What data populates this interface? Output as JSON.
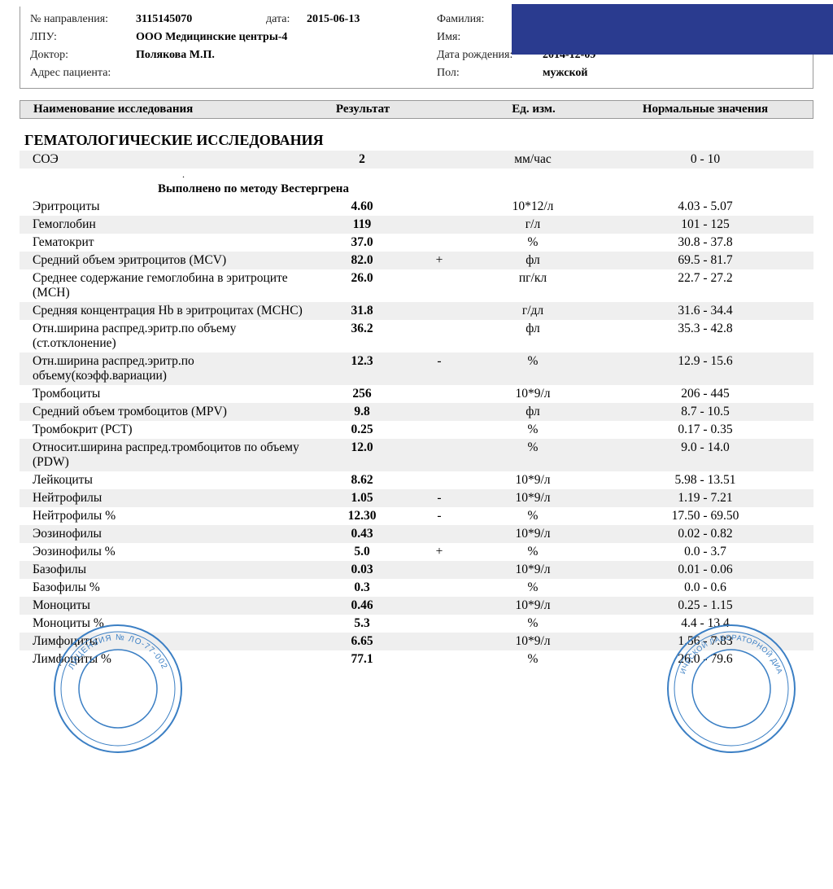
{
  "header": {
    "referral_label": "№ направления:",
    "referral_value": "3115145070",
    "date_label": "дата:",
    "date_value": "2015-06-13",
    "lpu_label": "ЛПУ:",
    "lpu_value": "ООО Медицинские центры-4",
    "doctor_label": "Доктор:",
    "doctor_value": "Полякова М.П.",
    "address_label": "Адрес пациента:",
    "address_value": "",
    "surname_label": "Фамилия:",
    "name_label": "Имя:",
    "dob_label": "Дата рождения:",
    "dob_value": "2014-12-09",
    "sex_label": "Пол:",
    "sex_value": "мужской"
  },
  "columns": {
    "name": "Наименование исследования",
    "result": "Результат",
    "unit": "Ед. изм.",
    "norm": "Нормальные значения"
  },
  "section_title": "ГЕМАТОЛОГИЧЕСКИЕ ИССЛЕДОВАНИЯ",
  "method_note": "Выполнено по методу Вестергрена",
  "rows": [
    {
      "name": "СОЭ",
      "result": "2",
      "flag": "",
      "unit": "мм/час",
      "norm": "0 - 10",
      "alt": true
    },
    {
      "name": "Эритроциты",
      "result": "4.60",
      "flag": "",
      "unit": "10*12/л",
      "norm": "4.03 - 5.07",
      "alt": false
    },
    {
      "name": "Гемоглобин",
      "result": "119",
      "flag": "",
      "unit": "г/л",
      "norm": "101 - 125",
      "alt": true
    },
    {
      "name": "Гематокрит",
      "result": "37.0",
      "flag": "",
      "unit": "%",
      "norm": "30.8 - 37.8",
      "alt": false
    },
    {
      "name": "Средний объем эритроцитов (MCV)",
      "result": "82.0",
      "flag": "+",
      "unit": "фл",
      "norm": "69.5 - 81.7",
      "alt": true
    },
    {
      "name": "Среднее содержание гемоглобина в эритроците (MCH)",
      "result": "26.0",
      "flag": "",
      "unit": "пг/кл",
      "norm": "22.7 - 27.2",
      "alt": false
    },
    {
      "name": "Средняя концентрация Hb в эритроцитах (MCHC)",
      "result": "31.8",
      "flag": "",
      "unit": "г/дл",
      "norm": "31.6 - 34.4",
      "alt": true
    },
    {
      "name": "Отн.ширина распред.эритр.по объему (ст.отклонение)",
      "result": "36.2",
      "flag": "",
      "unit": "фл",
      "norm": "35.3 - 42.8",
      "alt": false
    },
    {
      "name": "Отн.ширина распред.эритр.по объему(коэфф.вариации)",
      "result": "12.3",
      "flag": "-",
      "unit": "%",
      "norm": "12.9 - 15.6",
      "alt": true
    },
    {
      "name": "Тромбоциты",
      "result": "256",
      "flag": "",
      "unit": "10*9/л",
      "norm": "206 - 445",
      "alt": false
    },
    {
      "name": "Средний объем тромбоцитов (MPV)",
      "result": "9.8",
      "flag": "",
      "unit": "фл",
      "norm": "8.7 - 10.5",
      "alt": true
    },
    {
      "name": "Тромбокрит (PCT)",
      "result": "0.25",
      "flag": "",
      "unit": "%",
      "norm": "0.17 - 0.35",
      "alt": false
    },
    {
      "name": "Относит.ширина распред.тромбоцитов по объему (PDW)",
      "result": "12.0",
      "flag": "",
      "unit": "%",
      "norm": "9.0 - 14.0",
      "alt": true
    },
    {
      "name": "Лейкоциты",
      "result": "8.62",
      "flag": "",
      "unit": "10*9/л",
      "norm": "5.98 - 13.51",
      "alt": false
    },
    {
      "name": "Нейтрофилы",
      "result": "1.05",
      "flag": "-",
      "unit": "10*9/л",
      "norm": "1.19 - 7.21",
      "alt": true
    },
    {
      "name": "Нейтрофилы %",
      "result": "12.30",
      "flag": "-",
      "unit": "%",
      "norm": "17.50 - 69.50",
      "alt": false
    },
    {
      "name": "Эозинофилы",
      "result": "0.43",
      "flag": "",
      "unit": "10*9/л",
      "norm": "0.02 - 0.82",
      "alt": true
    },
    {
      "name": "Эозинофилы %",
      "result": "5.0",
      "flag": "+",
      "unit": "%",
      "norm": "0.0 - 3.7",
      "alt": false
    },
    {
      "name": "Базофилы",
      "result": "0.03",
      "flag": "",
      "unit": "10*9/л",
      "norm": "0.01 - 0.06",
      "alt": true
    },
    {
      "name": "Базофилы %",
      "result": "0.3",
      "flag": "",
      "unit": "%",
      "norm": "0.0 - 0.6",
      "alt": false
    },
    {
      "name": "Моноциты",
      "result": "0.46",
      "flag": "",
      "unit": "10*9/л",
      "norm": "0.25 - 1.15",
      "alt": true
    },
    {
      "name": "Моноциты %",
      "result": "5.3",
      "flag": "",
      "unit": "%",
      "norm": "4.4 - 13.4",
      "alt": false
    },
    {
      "name": "Лимфоциты",
      "result": "6.65",
      "flag": "",
      "unit": "10*9/л",
      "norm": "1.56 - 7.83",
      "alt": true
    },
    {
      "name": "Лимфоциты %",
      "result": "77.1",
      "flag": "",
      "unit": "%",
      "norm": "26.0 - 79.6",
      "alt": false
    }
  ],
  "stamp": {
    "color": "#3b7fc4",
    "text_left": "ЛИЦЕНЗИЯ № ЛО-77-002",
    "text_right": "ИЧЕСКОЙ ЛАБОРАТОРНОЙ ДИА"
  }
}
